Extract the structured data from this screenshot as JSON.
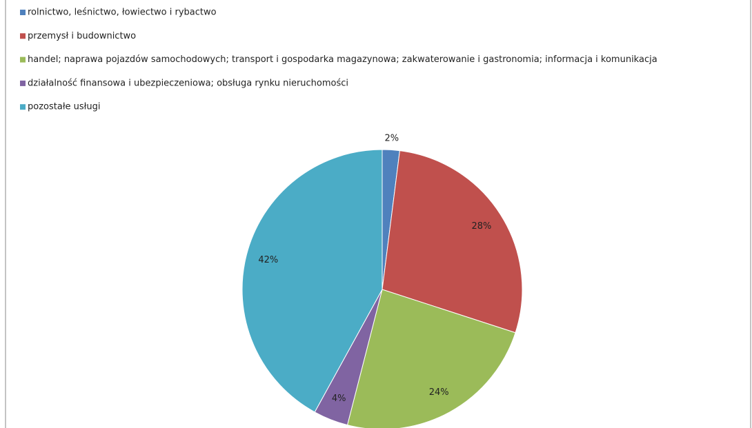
{
  "chart_data": {
    "type": "pie",
    "categories": [
      "rolnictwo, leśnictwo, łowiectwo i rybactwo",
      "przemysł i budownictwo",
      "handel; naprawa pojazdów samochodowych; transport i gospodarka magazynowa; zakwaterowanie i gastronomia; informacja i komunikacja",
      "działalność finansowa i ubezpieczeniowa; obsługa rynku nieruchomości",
      "pozostałe usługi"
    ],
    "values": [
      2,
      28,
      24,
      4,
      42
    ],
    "value_labels": [
      "2%",
      "28%",
      "24%",
      "4%",
      "42%"
    ],
    "colors": [
      "#4f81bd",
      "#c0504d",
      "#9bbb59",
      "#8064a2",
      "#4bacc6"
    ],
    "legend": "top-left"
  }
}
